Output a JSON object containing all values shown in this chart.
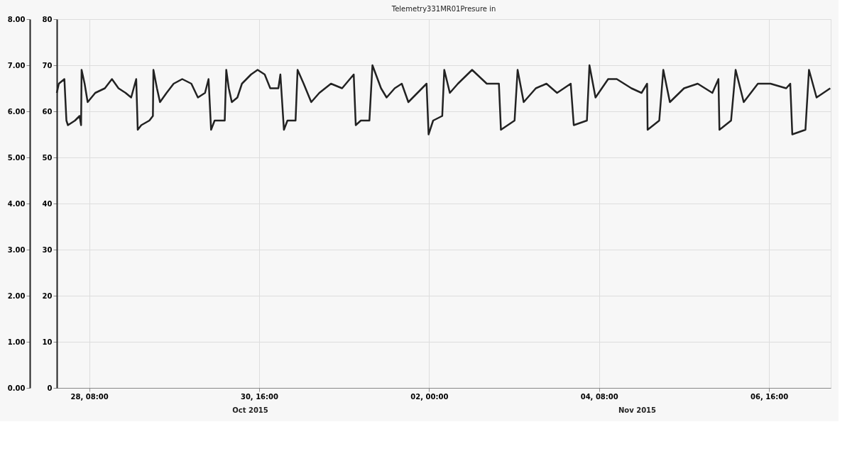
{
  "chart_data": {
    "type": "line",
    "title": "Telemetry331MR01Presure in",
    "x": [
      "2015-10-27T21:20",
      "2015-10-27T22:00",
      "2015-10-27T23:50",
      "2015-10-28T00:30",
      "2015-10-28T01:00",
      "2015-10-28T03:20",
      "2015-10-28T04:50",
      "2015-10-28T05:20",
      "2015-10-28T05:30",
      "2015-10-28T06:30",
      "2015-10-28T07:30",
      "2015-10-28T10:00",
      "2015-10-28T13:10",
      "2015-10-28T15:30",
      "2015-10-28T17:40",
      "2015-10-28T20:00",
      "2015-10-28T21:50",
      "2015-10-28T23:30",
      "2015-10-29T00:00",
      "2015-10-29T01:10",
      "2015-10-29T03:50",
      "2015-10-29T05:00",
      "2015-10-29T05:10",
      "2015-10-29T06:20",
      "2015-10-29T07:20",
      "2015-10-29T09:30",
      "2015-10-29T11:50",
      "2015-10-29T14:40",
      "2015-10-29T17:40",
      "2015-10-29T19:50",
      "2015-10-29T22:10",
      "2015-10-29T23:20",
      "2015-10-30T00:10",
      "2015-10-30T01:20",
      "2015-10-30T04:40",
      "2015-10-30T05:10",
      "2015-10-30T06:00",
      "2015-10-30T07:00",
      "2015-10-30T08:50",
      "2015-10-30T10:20",
      "2015-10-30T13:20",
      "2015-10-30T15:30",
      "2015-10-30T17:50",
      "2015-10-30T19:40",
      "2015-10-30T22:20",
      "2015-10-30T23:00",
      "2015-10-31T00:10",
      "2015-10-31T01:20",
      "2015-10-31T04:00",
      "2015-10-31T04:40",
      "2015-10-31T06:40",
      "2015-10-31T09:10",
      "2015-10-31T11:50",
      "2015-10-31T15:40",
      "2015-10-31T19:20",
      "2015-10-31T23:10",
      "2015-10-31T23:50",
      "2015-11-01T01:30",
      "2015-11-01T04:20",
      "2015-11-01T05:20",
      "2015-11-01T08:10",
      "2015-11-01T10:00",
      "2015-11-01T12:40",
      "2015-11-01T15:00",
      "2015-11-01T17:10",
      "2015-11-01T23:10",
      "2015-11-01T23:50",
      "2015-11-02T01:20",
      "2015-11-02T04:20",
      "2015-11-02T05:00",
      "2015-11-02T06:50",
      "2015-11-02T09:30",
      "2015-11-02T14:10",
      "2015-11-02T19:00",
      "2015-11-02T23:00",
      "2015-11-02T23:40",
      "2015-11-03T04:10",
      "2015-11-03T05:10",
      "2015-11-03T07:10",
      "2015-11-03T11:10",
      "2015-11-03T14:40",
      "2015-11-03T18:10",
      "2015-11-03T22:40",
      "2015-11-03T23:40",
      "2015-11-04T04:00",
      "2015-11-04T04:50",
      "2015-11-04T06:50",
      "2015-11-04T11:00",
      "2015-11-04T13:50",
      "2015-11-04T18:40",
      "2015-11-04T22:00",
      "2015-11-04T23:50",
      "2015-11-05T00:00",
      "2015-11-05T03:50",
      "2015-11-05T05:10",
      "2015-11-05T07:20",
      "2015-11-05T12:00",
      "2015-11-05T16:30",
      "2015-11-05T21:20",
      "2015-11-05T23:20",
      "2015-11-05T23:40",
      "2015-11-06T03:30",
      "2015-11-06T05:00",
      "2015-11-06T07:40",
      "2015-11-06T12:20",
      "2015-11-06T16:30",
      "2015-11-06T21:40",
      "2015-11-06T23:00",
      "2015-11-06T23:40",
      "2015-11-07T04:00",
      "2015-11-07T05:10",
      "2015-11-07T07:40",
      "2015-11-07T12:10"
    ],
    "series": [
      {
        "color": "#222222",
        "axis": "y2",
        "values": [
          64,
          66,
          67,
          58,
          57,
          58,
          59,
          57,
          69,
          66,
          62,
          64,
          65,
          67,
          65,
          64,
          63,
          67,
          56,
          57,
          58,
          59,
          69,
          65,
          62,
          64,
          66,
          67,
          66,
          63,
          64,
          67,
          56,
          58,
          58,
          69,
          65,
          62,
          63,
          66,
          68,
          69,
          68,
          65,
          65,
          68,
          56,
          58,
          58,
          69,
          66,
          62,
          64,
          66,
          65,
          68,
          57,
          58,
          58,
          70,
          65,
          63,
          65,
          66,
          62,
          66,
          55,
          58,
          59,
          69,
          64,
          66,
          69,
          66,
          66,
          56,
          58,
          69,
          62,
          65,
          66,
          64,
          66,
          57,
          58,
          70,
          63,
          67,
          67,
          65,
          64,
          66,
          56,
          58,
          69,
          62,
          65,
          66,
          64,
          67,
          56,
          58,
          69,
          62,
          66,
          66,
          65,
          66,
          55,
          56,
          69,
          63,
          65
        ]
      }
    ],
    "xlim": [
      "2015-10-27T21:20",
      "2015-11-07T12:20"
    ],
    "xticks": [
      {
        "value": "2015-10-28T08:00",
        "label": "28, 08:00"
      },
      {
        "value": "2015-10-30T16:00",
        "label": "30, 16:00"
      },
      {
        "value": "2015-11-02T00:00",
        "label": "02, 00:00"
      },
      {
        "value": "2015-11-04T08:00",
        "label": "04, 08:00"
      },
      {
        "value": "2015-11-06T16:00",
        "label": "06, 16:00"
      }
    ],
    "y2lim": [
      0,
      80
    ],
    "y2ticks": [
      0,
      10,
      20,
      30,
      40,
      50,
      60,
      70,
      80
    ],
    "ylim": [
      0,
      8
    ],
    "yticks": [
      {
        "value": 0,
        "label": "0.00"
      },
      {
        "value": 1,
        "label": "1.00"
      },
      {
        "value": 2,
        "label": "2.00"
      },
      {
        "value": 3,
        "label": "3.00"
      },
      {
        "value": 4,
        "label": "4.00"
      },
      {
        "value": 5,
        "label": "5.00"
      },
      {
        "value": 6,
        "label": "6.00"
      },
      {
        "value": 7,
        "label": "7.00"
      },
      {
        "value": 8,
        "label": "8.00"
      }
    ],
    "annotations": [
      "Oct 2015",
      "Nov 2015"
    ],
    "grid": true,
    "line_style": "solid",
    "marker": "none"
  }
}
